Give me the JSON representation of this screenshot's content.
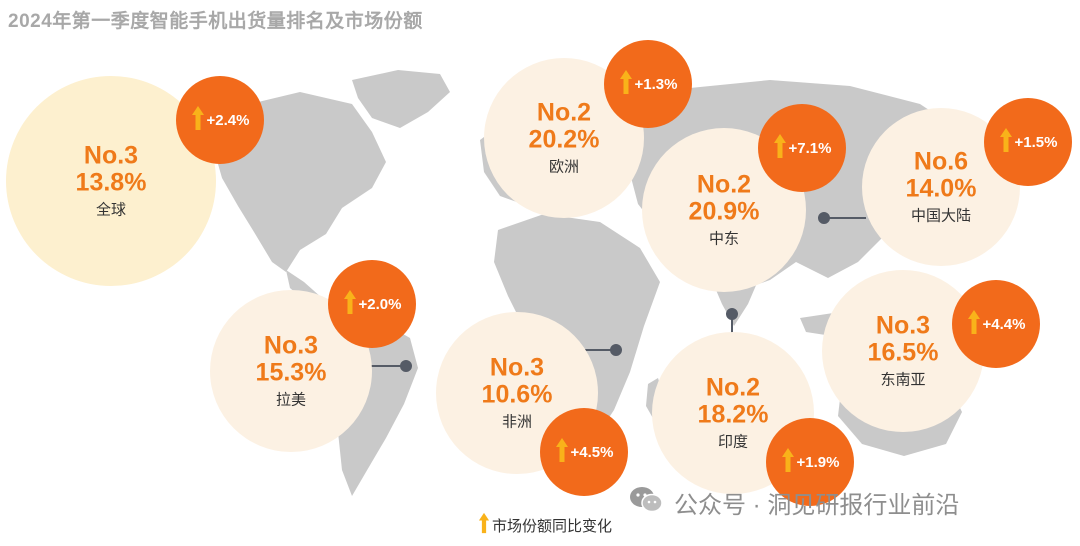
{
  "title": "2024年第一季度智能手机出货量排名及市场份额",
  "legend_label": "市场份额同比变化",
  "watermark": "公众号 · 洞见研报行业前沿",
  "colors": {
    "accent": "#ef7a1a",
    "badge": "#f26a1b",
    "arrow": "#f9b21a",
    "circle": "#fcf1e3",
    "global_circle": "#fdf0cf",
    "map": "#c9c9c9"
  },
  "icons": {
    "arrow": "up-arrow-icon",
    "watermark": "wechat-icon"
  },
  "chart_data": {
    "type": "bubble-map",
    "title": "2024年第一季度智能手机出货量排名及市场份额",
    "legend": "市场份额同比变化",
    "regions": [
      {
        "name": "全球",
        "rank": "No.3",
        "share": "13.8%",
        "yoy": "+2.4%"
      },
      {
        "name": "欧洲",
        "rank": "No.2",
        "share": "20.2%",
        "yoy": "+1.3%"
      },
      {
        "name": "中东",
        "rank": "No.2",
        "share": "20.9%",
        "yoy": "+7.1%"
      },
      {
        "name": "中国大陆",
        "rank": "No.6",
        "share": "14.0%",
        "yoy": "+1.5%"
      },
      {
        "name": "拉美",
        "rank": "No.3",
        "share": "15.3%",
        "yoy": "+2.0%"
      },
      {
        "name": "非洲",
        "rank": "No.3",
        "share": "10.6%",
        "yoy": "+4.5%"
      },
      {
        "name": "印度",
        "rank": "No.2",
        "share": "18.2%",
        "yoy": "+1.9%"
      },
      {
        "name": "东南亚",
        "rank": "No.3",
        "share": "16.5%",
        "yoy": "+4.4%"
      }
    ]
  }
}
